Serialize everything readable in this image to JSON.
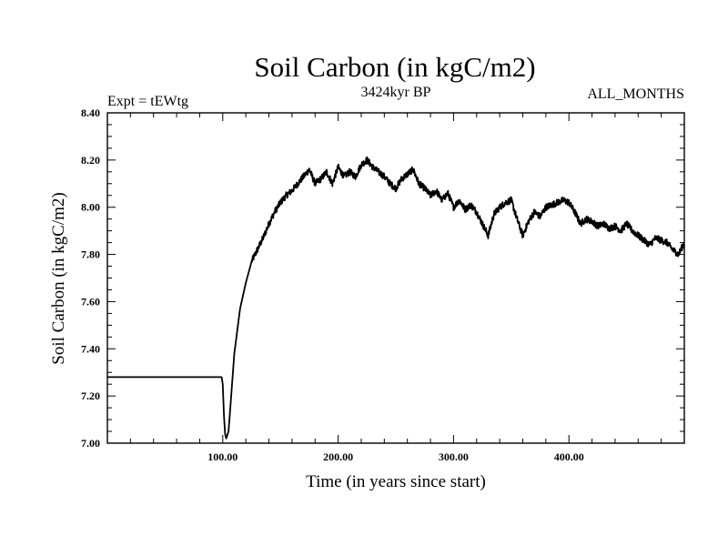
{
  "chart_data": {
    "type": "line",
    "title": "Soil Carbon (in kgC/m2)",
    "left_subtitle": "Expt = tEWtg",
    "center_subtitle": "3424kyr BP",
    "right_subtitle": "ALL_MONTHS",
    "xlabel": "Time (in years since start)",
    "ylabel": "Soil Carbon (in kgC/m2)",
    "xlim": [
      0,
      500
    ],
    "ylim": [
      7.0,
      8.4
    ],
    "x_ticks": [
      100,
      200,
      300,
      400
    ],
    "x_tick_labels": [
      "100.00",
      "200.00",
      "300.00",
      "400.00"
    ],
    "y_ticks": [
      7.0,
      7.2,
      7.4,
      7.6,
      7.8,
      8.0,
      8.2,
      8.4
    ],
    "y_tick_labels": [
      "7.00",
      "7.20",
      "7.40",
      "7.60",
      "7.80",
      "8.00",
      "8.20",
      "8.40"
    ],
    "grid": false,
    "series": [
      {
        "name": "Soil Carbon",
        "color": "#000000",
        "x": [
          0,
          99,
          100,
          101,
          102,
          103,
          105,
          107,
          110,
          115,
          120,
          125,
          130,
          135,
          140,
          145,
          150,
          155,
          160,
          165,
          170,
          175,
          180,
          185,
          190,
          195,
          200,
          205,
          210,
          215,
          220,
          225,
          230,
          235,
          240,
          245,
          250,
          255,
          260,
          265,
          270,
          275,
          280,
          285,
          290,
          295,
          300,
          305,
          310,
          315,
          320,
          325,
          330,
          335,
          340,
          345,
          350,
          355,
          360,
          365,
          370,
          375,
          380,
          385,
          390,
          395,
          400,
          405,
          410,
          415,
          420,
          425,
          430,
          435,
          440,
          445,
          450,
          455,
          460,
          465,
          470,
          475,
          480,
          485,
          490,
          495,
          500
        ],
        "y": [
          7.28,
          7.28,
          7.25,
          7.12,
          7.04,
          7.02,
          7.05,
          7.18,
          7.38,
          7.57,
          7.68,
          7.77,
          7.82,
          7.87,
          7.93,
          7.98,
          8.02,
          8.05,
          8.07,
          8.1,
          8.13,
          8.16,
          8.1,
          8.12,
          8.15,
          8.1,
          8.17,
          8.13,
          8.15,
          8.13,
          8.18,
          8.2,
          8.17,
          8.15,
          8.13,
          8.1,
          8.08,
          8.12,
          8.14,
          8.16,
          8.1,
          8.08,
          8.05,
          8.07,
          8.03,
          8.06,
          8.0,
          8.03,
          7.99,
          8.01,
          7.98,
          7.93,
          7.88,
          7.97,
          8.0,
          8.02,
          8.03,
          7.95,
          7.88,
          7.94,
          7.98,
          7.96,
          8.0,
          8.01,
          8.02,
          8.03,
          8.02,
          7.98,
          7.93,
          7.95,
          7.94,
          7.92,
          7.93,
          7.91,
          7.92,
          7.9,
          7.93,
          7.9,
          7.88,
          7.86,
          7.84,
          7.87,
          7.86,
          7.85,
          7.82,
          7.8,
          7.85
        ]
      }
    ]
  }
}
